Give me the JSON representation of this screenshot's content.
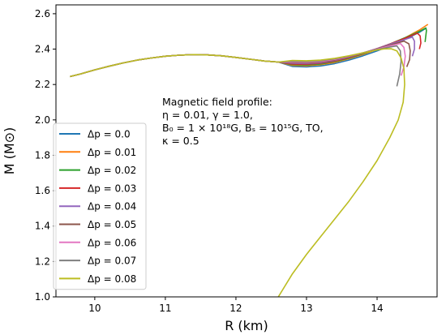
{
  "chart_data": {
    "type": "line",
    "xlabel": "R (km)",
    "ylabel": "M (M⊙)",
    "xlim": [
      9.45,
      14.85
    ],
    "ylim": [
      1.0,
      2.65
    ],
    "xticks": [
      10,
      11,
      12,
      13,
      14
    ],
    "yticks": [
      1.0,
      1.2,
      1.4,
      1.6,
      1.8,
      2.0,
      2.2,
      2.4,
      2.6
    ],
    "grid": false,
    "legend_position": "left",
    "annotation": [
      "Magnetic field profile:",
      "η = 0.01, γ = 1.0,",
      "B₀ = 1 × 10¹⁸G, Bₛ = 10¹⁵G, TO,",
      "κ = 0.5"
    ],
    "common_branch": {
      "x": [
        9.65,
        9.8,
        10.0,
        10.2,
        10.4,
        10.6,
        10.8,
        11.0,
        11.2,
        11.4,
        11.6,
        11.8,
        12.0,
        12.2,
        12.4,
        12.6
      ],
      "y": [
        2.245,
        2.26,
        2.283,
        2.303,
        2.322,
        2.338,
        2.35,
        2.36,
        2.366,
        2.369,
        2.367,
        2.362,
        2.353,
        2.343,
        2.333,
        2.327
      ]
    },
    "series": [
      {
        "name": "Δp = 0.0",
        "color": "#1f77b4",
        "x": [
          12.8,
          13.0,
          13.2,
          13.4,
          13.6,
          13.8,
          14.0,
          14.2,
          14.4,
          14.6,
          14.7
        ],
        "y": [
          2.302,
          2.3,
          2.305,
          2.318,
          2.338,
          2.362,
          2.39,
          2.42,
          2.455,
          2.495,
          2.52
        ]
      },
      {
        "name": "Δp = 0.01",
        "color": "#ff7f0e",
        "x": [
          12.8,
          13.0,
          13.2,
          13.4,
          13.6,
          13.8,
          14.0,
          14.2,
          14.4,
          14.6,
          14.72
        ],
        "y": [
          2.308,
          2.306,
          2.312,
          2.325,
          2.345,
          2.37,
          2.398,
          2.43,
          2.465,
          2.508,
          2.54
        ]
      },
      {
        "name": "Δp = 0.02",
        "color": "#2ca02c",
        "x": [
          12.8,
          13.0,
          13.2,
          13.4,
          13.6,
          13.8,
          14.0,
          14.2,
          14.4,
          14.6,
          14.69,
          14.7,
          14.68
        ],
        "y": [
          2.312,
          2.31,
          2.316,
          2.329,
          2.349,
          2.374,
          2.401,
          2.432,
          2.465,
          2.5,
          2.52,
          2.505,
          2.44
        ]
      },
      {
        "name": "Δp = 0.03",
        "color": "#d62728",
        "x": [
          12.8,
          13.0,
          13.2,
          13.4,
          13.6,
          13.8,
          14.0,
          14.2,
          14.4,
          14.57,
          14.61,
          14.62,
          14.6
        ],
        "y": [
          2.316,
          2.314,
          2.32,
          2.333,
          2.352,
          2.377,
          2.403,
          2.432,
          2.462,
          2.49,
          2.475,
          2.435,
          2.4
        ]
      },
      {
        "name": "Δp = 0.04",
        "color": "#9467bd",
        "x": [
          12.8,
          13.0,
          13.2,
          13.4,
          13.6,
          13.8,
          14.0,
          14.2,
          14.4,
          14.5,
          14.53,
          14.53,
          14.5
        ],
        "y": [
          2.32,
          2.318,
          2.323,
          2.336,
          2.355,
          2.378,
          2.403,
          2.43,
          2.455,
          2.468,
          2.445,
          2.4,
          2.36
        ]
      },
      {
        "name": "Δp = 0.05",
        "color": "#8c564b",
        "x": [
          12.8,
          13.0,
          13.2,
          13.4,
          13.6,
          13.8,
          14.0,
          14.2,
          14.38,
          14.45,
          14.47,
          14.46,
          14.42
        ],
        "y": [
          2.324,
          2.322,
          2.327,
          2.339,
          2.357,
          2.379,
          2.402,
          2.425,
          2.445,
          2.43,
          2.39,
          2.34,
          2.3
        ]
      },
      {
        "name": "Δp = 0.06",
        "color": "#e377c2",
        "x": [
          12.8,
          13.0,
          13.2,
          13.4,
          13.6,
          13.8,
          14.0,
          14.2,
          14.33,
          14.38,
          14.4,
          14.38,
          14.34
        ],
        "y": [
          2.328,
          2.326,
          2.331,
          2.342,
          2.359,
          2.379,
          2.4,
          2.42,
          2.432,
          2.41,
          2.36,
          2.3,
          2.25
        ]
      },
      {
        "name": "Δp = 0.07",
        "color": "#7f7f7f",
        "x": [
          12.8,
          13.0,
          13.2,
          13.4,
          13.6,
          13.8,
          14.0,
          14.2,
          14.28,
          14.33,
          14.34,
          14.32,
          14.28
        ],
        "y": [
          2.332,
          2.33,
          2.335,
          2.345,
          2.361,
          2.379,
          2.398,
          2.413,
          2.418,
          2.39,
          2.33,
          2.26,
          2.19
        ]
      },
      {
        "name": "Δp = 0.08",
        "color": "#bcbd22",
        "x": [
          12.8,
          13.0,
          13.2,
          13.4,
          13.6,
          13.8,
          14.0,
          14.1,
          14.2,
          14.28,
          14.34,
          14.38,
          14.39,
          14.37,
          14.3,
          14.18,
          14.0,
          13.8,
          13.6,
          13.4,
          13.2,
          13.0,
          12.8,
          12.6
        ],
        "y": [
          2.336,
          2.334,
          2.338,
          2.348,
          2.362,
          2.379,
          2.395,
          2.401,
          2.402,
          2.39,
          2.35,
          2.29,
          2.2,
          2.1,
          2.0,
          1.9,
          1.77,
          1.65,
          1.54,
          1.44,
          1.34,
          1.24,
          1.13,
          1.0
        ]
      }
    ]
  }
}
